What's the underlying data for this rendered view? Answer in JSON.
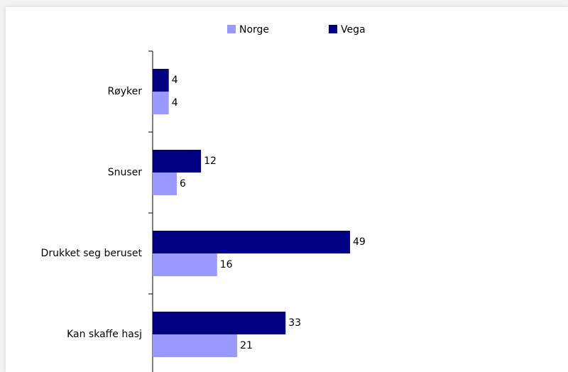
{
  "chart_data": {
    "type": "bar",
    "orientation": "horizontal",
    "categories": [
      "Røyker",
      "Snuser",
      "Drukket seg beruset",
      "Kan skaffe hasj"
    ],
    "series": [
      {
        "name": "Norge",
        "color": "#9999ff",
        "values": [
          4,
          6,
          16,
          21
        ]
      },
      {
        "name": "Vega",
        "color": "#000080",
        "values": [
          4,
          12,
          49,
          33
        ]
      }
    ],
    "legend": "top"
  }
}
